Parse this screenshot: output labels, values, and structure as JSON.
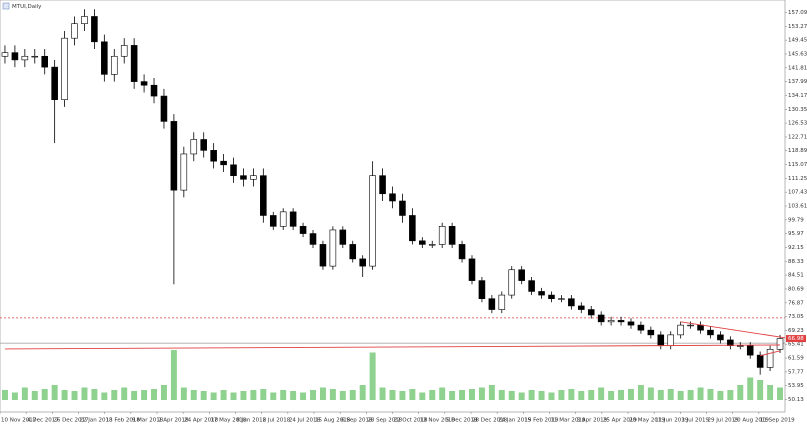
{
  "chart_data": {
    "type": "candlestick",
    "title": "MTUI,Daily",
    "x_labels": [
      "10 Nov 2017",
      "4 Dec 2017",
      "26 Dec 2017",
      "22 Jan 2018",
      "13 Feb 2018",
      "9 Mar 2018",
      "2 Apr 2018",
      "24 Apr 2018",
      "17 May 2018",
      "8 Jun 2018",
      "2 Jul 2018",
      "24 Jul 2018",
      "15 Aug 2018",
      "6 Sep 2018",
      "28 Sep 2018",
      "22 Oct 2018",
      "13 Nov 2018",
      "5 Dec 2018",
      "28 Dec 2018",
      "24 Jan 2019",
      "15 Feb 2019",
      "11 Mar 2019",
      "3 Apr 2019",
      "25 Apr 2019",
      "20 May 2019",
      "11 Jun 2019",
      "3 Jul 2019",
      "29 Jul 2019",
      "20 Aug 2019",
      "11 Sep 2019"
    ],
    "open": [
      145,
      146,
      144,
      145,
      145,
      142,
      133,
      150,
      154,
      156,
      149,
      140,
      145,
      148,
      138,
      137,
      134,
      127,
      108,
      118,
      122,
      119,
      116,
      115,
      112,
      111,
      112,
      101,
      98,
      102,
      98,
      96,
      93,
      87,
      97,
      93,
      89,
      87,
      112,
      107,
      105,
      101,
      94,
      93,
      93,
      98,
      93,
      89,
      83,
      78,
      75,
      79,
      86,
      83,
      80,
      79,
      78,
      78,
      76,
      75,
      73.5,
      71.6,
      72,
      71.6,
      70.7,
      69.3,
      68,
      65,
      68,
      70.7,
      70.7,
      69.3,
      68,
      66.6,
      65,
      65,
      62.4,
      59,
      64
    ],
    "high": [
      148,
      148,
      147,
      147,
      147,
      144,
      152,
      156,
      158,
      158,
      151,
      147,
      150,
      150,
      140,
      139,
      136,
      129,
      120,
      124,
      124,
      121,
      118,
      117,
      114,
      114,
      114,
      102,
      103,
      103,
      99,
      97,
      94,
      98,
      98,
      94,
      90,
      116,
      114,
      109,
      107,
      103,
      95,
      94,
      99,
      99,
      94,
      90,
      84,
      79,
      80,
      87,
      87,
      84,
      81,
      80,
      79,
      79,
      77,
      76,
      74.5,
      73,
      73,
      72.6,
      71.7,
      70.3,
      69,
      69,
      71.7,
      71.7,
      71.7,
      70.3,
      69,
      67.6,
      66,
      66,
      63.4,
      65,
      68
    ],
    "low": [
      143,
      142,
      142,
      143,
      140,
      121,
      131,
      148,
      152,
      147,
      138,
      138,
      143,
      136,
      135,
      132,
      125,
      82,
      106,
      116,
      117,
      114,
      113,
      110,
      109,
      109,
      99,
      97,
      97,
      97,
      95,
      92,
      86,
      86,
      92,
      88,
      84,
      86,
      105,
      103,
      99,
      93,
      92,
      92,
      92,
      92,
      88,
      82,
      77,
      74,
      74,
      78,
      82,
      79,
      78,
      77,
      77,
      75,
      74,
      72.5,
      70.6,
      70.6,
      70.6,
      69.7,
      68.3,
      67,
      64,
      64,
      67,
      69.7,
      68.3,
      67,
      65.6,
      64,
      64,
      61.4,
      57,
      58,
      63
    ],
    "close": [
      146,
      144,
      145,
      145,
      142,
      133,
      150,
      154,
      156,
      149,
      140,
      145,
      148,
      138,
      137,
      134,
      127,
      108,
      118,
      122,
      119,
      116,
      115,
      112,
      111,
      112,
      101,
      98,
      102,
      98,
      96,
      93,
      87,
      97,
      93,
      89,
      87,
      112,
      107,
      105,
      101,
      94,
      93,
      93,
      98,
      93,
      89,
      83,
      78,
      75,
      79,
      86,
      83,
      80,
      79,
      78,
      78,
      76,
      75,
      73.5,
      71.6,
      72,
      71.6,
      70.7,
      69.3,
      68,
      65,
      68,
      70.7,
      70.7,
      69.3,
      68,
      66.6,
      65,
      65,
      62.4,
      59,
      64,
      66.98
    ],
    "volume": [
      20,
      15,
      25,
      18,
      22,
      30,
      20,
      18,
      25,
      22,
      15,
      20,
      25,
      18,
      20,
      22,
      30,
      100,
      25,
      20,
      18,
      15,
      20,
      15,
      18,
      20,
      22,
      15,
      20,
      18,
      15,
      20,
      25,
      22,
      18,
      20,
      30,
      95,
      25,
      20,
      18,
      22,
      15,
      20,
      25,
      18,
      20,
      22,
      25,
      30,
      20,
      18,
      15,
      20,
      18,
      15,
      20,
      22,
      18,
      20,
      25,
      18,
      20,
      22,
      30,
      25,
      20,
      22,
      18,
      20,
      25,
      22,
      18,
      20,
      30,
      45,
      40,
      30,
      25
    ],
    "color": "#000000",
    "volume_color": "#8fd18f",
    "ylim": [
      50,
      160
    ],
    "yticks": [
      157.09,
      153.27,
      149.45,
      145.63,
      141.81,
      137.99,
      134.17,
      130.35,
      126.53,
      122.71,
      118.89,
      115.07,
      111.25,
      107.43,
      103.61,
      99.79,
      95.97,
      92.15,
      88.33,
      84.51,
      80.69,
      76.87,
      73.05,
      69.23,
      65.41,
      61.59,
      57.77,
      53.95,
      50.13
    ],
    "levels": [
      {
        "value": 72.7,
        "color": "#e04040",
        "dash": true
      },
      {
        "value": 65.7,
        "color": "#aaaaaa",
        "dash": false
      }
    ],
    "trendlines": [
      {
        "from": [
          0,
          64.1
        ],
        "to": [
          78,
          65.2
        ],
        "color": "#e04040"
      },
      {
        "from": [
          68,
          71.6
        ],
        "to": [
          78.5,
          67.2
        ],
        "color": "#e04040"
      },
      {
        "from": [
          76,
          62.2
        ],
        "to": [
          78,
          63.6
        ],
        "color": "#e04040"
      }
    ]
  }
}
